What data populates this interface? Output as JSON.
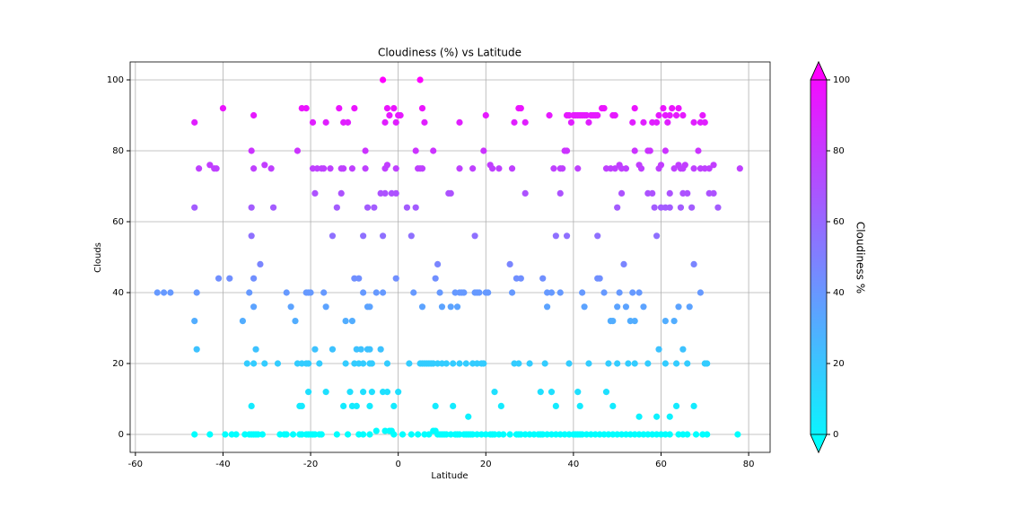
{
  "chart_data": {
    "type": "scatter",
    "title": "Cloudiness (%) vs Latitude",
    "x_label": "Latitude",
    "y_label": "Clouds",
    "x": [
      -46.5,
      -43,
      -39.5,
      -38,
      -37,
      -35,
      -34,
      -33.5,
      -33,
      -32.5,
      -32,
      -31,
      -27,
      -26,
      -25.5,
      -24,
      -22.5,
      -22,
      -21,
      -20.5,
      -20,
      -19.5,
      -19,
      -18,
      -17.5,
      -14,
      -11.5,
      -9,
      -8,
      -6.5,
      -5,
      -3,
      -2,
      -1.5,
      -1,
      1,
      3,
      4.5,
      6,
      7,
      8,
      8.5,
      9,
      9.5,
      10,
      10.5,
      11,
      12,
      13,
      13.5,
      14,
      15,
      15.5,
      16,
      16.5,
      17,
      18,
      19,
      20,
      21,
      21.5,
      22,
      23,
      24,
      25.5,
      27,
      27.5,
      28,
      29,
      30,
      31,
      32,
      32.5,
      33,
      34,
      35,
      36,
      37,
      38,
      39,
      40,
      40.5,
      41,
      41.5,
      42,
      43,
      44,
      45,
      46,
      47,
      48,
      49,
      50,
      51,
      52,
      53,
      54,
      55,
      56,
      57,
      58,
      59,
      60,
      61,
      62,
      64,
      65,
      66,
      68,
      69.5,
      70.5,
      77.5,
      -34.5,
      -33,
      -30.5,
      -27.5,
      -23,
      -22,
      -21,
      -20.5,
      -18,
      -12,
      -10,
      -9,
      -8,
      -6.5,
      -6,
      -2.5,
      2.5,
      5,
      5.5,
      6,
      6.5,
      7,
      7.5,
      8,
      9,
      10,
      11,
      12.5,
      14,
      15.5,
      17,
      18,
      19,
      19.5,
      26.5,
      27.5,
      30,
      33.5,
      39,
      43.5,
      48,
      50,
      52.5,
      54,
      57,
      61,
      63.5,
      66,
      70,
      70.5,
      -55,
      -53.5,
      -52,
      -46,
      -34,
      -25.5,
      -21,
      -20.5,
      -20,
      -17,
      -8,
      -5,
      -3.5,
      3.5,
      9.5,
      13,
      14,
      14.5,
      15,
      17.5,
      18,
      18.5,
      20,
      20.5,
      26,
      34,
      35,
      37,
      42,
      47,
      50.5,
      53.5,
      55,
      69,
      -46.5,
      -35.5,
      -33,
      -33,
      -31.5,
      -41,
      -38.5,
      -23.5,
      -24.5,
      -16.5,
      -12,
      -10.5,
      -10,
      -9,
      -7,
      -6.5,
      -0.5,
      5.5,
      9,
      8.5,
      10,
      12,
      13.5,
      25.5,
      27,
      28,
      33,
      34,
      42.5,
      45.5,
      46,
      48.5,
      49,
      50,
      51.5,
      52,
      53,
      54,
      56,
      61,
      63,
      64,
      66.5,
      67.5,
      -46,
      -32.5,
      -19,
      -15,
      -9.5,
      -8.5,
      -7,
      -6.5,
      -4,
      -33.5,
      -22.5,
      -22,
      -20.5,
      -16.5,
      -12.5,
      -11,
      -10.5,
      -9.5,
      -8,
      -6.5,
      -6,
      -3.5,
      -2.5,
      -1,
      0,
      8.5,
      12.5,
      16,
      22,
      23.5,
      32.5,
      35,
      36,
      41,
      41.5,
      47.5,
      49,
      55,
      59,
      62,
      63.5,
      65,
      67.5,
      59.5,
      -46.5,
      -33.5,
      -33.5,
      -28.5,
      -19,
      -15,
      -14,
      -13,
      -8,
      -7,
      -5.5,
      -4,
      -3.5,
      -3,
      -1.5,
      -0.5,
      2,
      3,
      4,
      11.5,
      12,
      17.5,
      29,
      36,
      37,
      38.5,
      45.5,
      50,
      51,
      57,
      58,
      58.5,
      59,
      60,
      61,
      62,
      62,
      64.5,
      65,
      66,
      67,
      71,
      72,
      73,
      -45.5,
      -43,
      -42,
      -41.5,
      -33.5,
      -33,
      -30.5,
      -29,
      -23,
      -19.5,
      -18.5,
      -17.5,
      -17,
      -15.5,
      -13,
      -12.5,
      -10.5,
      -7.5,
      -7.5,
      -3,
      -2.5,
      -0.5,
      4,
      4.5,
      5,
      5.5,
      8,
      14,
      17,
      19.5,
      21,
      21.5,
      23,
      26,
      35.5,
      37,
      37.5,
      38,
      38.5,
      41,
      47.5,
      48.5,
      49.5,
      50.5,
      51,
      52,
      54,
      55,
      55.5,
      57,
      57.5,
      59.5,
      60,
      61,
      63,
      64,
      64.5,
      65,
      65.5,
      67.5,
      68.5,
      69,
      70,
      71,
      72,
      78,
      -46.5,
      -40,
      -33,
      -22,
      -21,
      -19.5,
      -16.5,
      -13.5,
      -12.5,
      -11.5,
      -10,
      -3.5,
      -3,
      -2.5,
      -2,
      -1,
      -0.5,
      0,
      0.5,
      5,
      5.5,
      6,
      14,
      20,
      26.5,
      27.5,
      28,
      29,
      34.5,
      38.5,
      39,
      39.5,
      40,
      40.5,
      41,
      41.5,
      42,
      42.5,
      43,
      43.5,
      44,
      44.5,
      45,
      45.5,
      46.5,
      47,
      49,
      49.5,
      53.5,
      54,
      56,
      58,
      59,
      59.5,
      60.5,
      61,
      61.5,
      62,
      62.5,
      63.5,
      64,
      65,
      67.5,
      69,
      69.5,
      70
    ],
    "values": [
      0,
      0,
      0,
      0,
      0,
      0,
      0,
      0,
      0,
      0,
      0,
      0,
      0,
      0,
      0,
      0,
      0,
      0,
      0,
      0,
      0,
      0,
      0,
      0,
      0,
      0,
      0,
      0,
      0,
      0,
      1,
      1,
      1,
      1,
      0,
      0,
      0,
      0,
      0,
      0,
      1,
      1,
      0,
      0,
      0,
      0,
      0,
      0,
      0,
      0,
      0,
      0,
      0,
      0,
      0,
      0,
      0,
      0,
      0,
      0,
      0,
      0,
      0,
      0,
      0,
      0,
      0,
      0,
      0,
      0,
      0,
      0,
      0,
      0,
      0,
      0,
      0,
      0,
      0,
      0,
      0,
      0,
      0,
      0,
      0,
      0,
      0,
      0,
      0,
      0,
      0,
      0,
      0,
      0,
      0,
      0,
      0,
      0,
      0,
      0,
      0,
      0,
      0,
      0,
      0,
      0,
      0,
      0,
      0,
      0,
      0,
      0,
      20,
      20,
      20,
      20,
      20,
      20,
      20,
      20,
      20,
      20,
      20,
      20,
      20,
      20,
      20,
      20,
      20,
      20,
      20,
      20,
      20,
      20,
      20,
      20,
      20,
      20,
      20,
      20,
      20,
      20,
      20,
      20,
      20,
      20,
      20,
      20,
      20,
      20,
      20,
      20,
      20,
      20,
      20,
      20,
      20,
      20,
      20,
      20,
      20,
      20,
      40,
      40,
      40,
      40,
      40,
      40,
      40,
      40,
      40,
      40,
      40,
      40,
      40,
      40,
      40,
      40,
      40,
      40,
      40,
      40,
      40,
      40,
      40,
      40,
      40,
      40,
      40,
      40,
      40,
      40,
      40,
      40,
      40,
      40,
      32,
      32,
      36,
      44,
      48,
      44,
      44,
      32,
      36,
      36,
      32,
      32,
      44,
      44,
      36,
      36,
      44,
      36,
      48,
      44,
      36,
      36,
      36,
      48,
      44,
      44,
      44,
      36,
      36,
      44,
      44,
      32,
      32,
      36,
      48,
      36,
      32,
      32,
      36,
      32,
      32,
      36,
      36,
      48,
      24,
      24,
      24,
      24,
      24,
      24,
      24,
      24,
      24,
      8,
      8,
      8,
      12,
      12,
      8,
      12,
      8,
      8,
      12,
      8,
      12,
      12,
      12,
      8,
      12,
      8,
      8,
      5,
      12,
      8,
      12,
      12,
      8,
      12,
      8,
      12,
      8,
      5,
      5,
      5,
      8,
      24,
      8,
      24,
      64,
      64,
      56,
      64,
      68,
      56,
      64,
      68,
      56,
      64,
      64,
      68,
      56,
      68,
      68,
      68,
      64,
      56,
      64,
      68,
      68,
      56,
      68,
      56,
      68,
      56,
      56,
      64,
      68,
      68,
      68,
      64,
      56,
      64,
      64,
      64,
      68,
      64,
      68,
      68,
      64,
      68,
      68,
      64,
      75,
      76,
      75,
      75,
      80,
      75,
      76,
      75,
      80,
      75,
      75,
      75,
      75,
      75,
      75,
      75,
      75,
      75,
      80,
      75,
      76,
      75,
      80,
      75,
      75,
      75,
      80,
      75,
      75,
      80,
      76,
      75,
      75,
      75,
      75,
      75,
      75,
      80,
      80,
      75,
      75,
      75,
      75,
      76,
      75,
      75,
      80,
      76,
      75,
      80,
      80,
      75,
      76,
      80,
      75,
      76,
      75,
      75,
      76,
      75,
      80,
      75,
      75,
      75,
      76,
      75,
      88,
      92,
      90,
      92,
      92,
      88,
      88,
      92,
      88,
      88,
      92,
      100,
      88,
      92,
      90,
      92,
      88,
      90,
      90,
      100,
      92,
      88,
      88,
      90,
      88,
      92,
      92,
      88,
      90,
      90,
      90,
      88,
      90,
      90,
      90,
      90,
      90,
      90,
      90,
      88,
      90,
      90,
      90,
      90,
      92,
      92,
      90,
      90,
      88,
      92,
      88,
      88,
      88,
      90,
      92,
      90,
      88,
      90,
      92,
      90,
      92,
      90,
      88,
      88,
      90,
      88
    ],
    "xlim": [
      -61.2,
      84.9
    ],
    "ylim": [
      -5.06,
      105.06
    ],
    "xticks": [
      -60,
      -40,
      -20,
      0,
      20,
      40,
      60,
      80
    ],
    "yticks": [
      0,
      20,
      40,
      60,
      80,
      100
    ],
    "grid": true,
    "colorbar": {
      "label": "Cloudiness %",
      "lim": [
        0,
        100
      ],
      "ticks": [
        0,
        20,
        40,
        60,
        80,
        100
      ],
      "colors": [
        "#00ffff",
        "#ff00ff"
      ],
      "extend": "both"
    }
  }
}
